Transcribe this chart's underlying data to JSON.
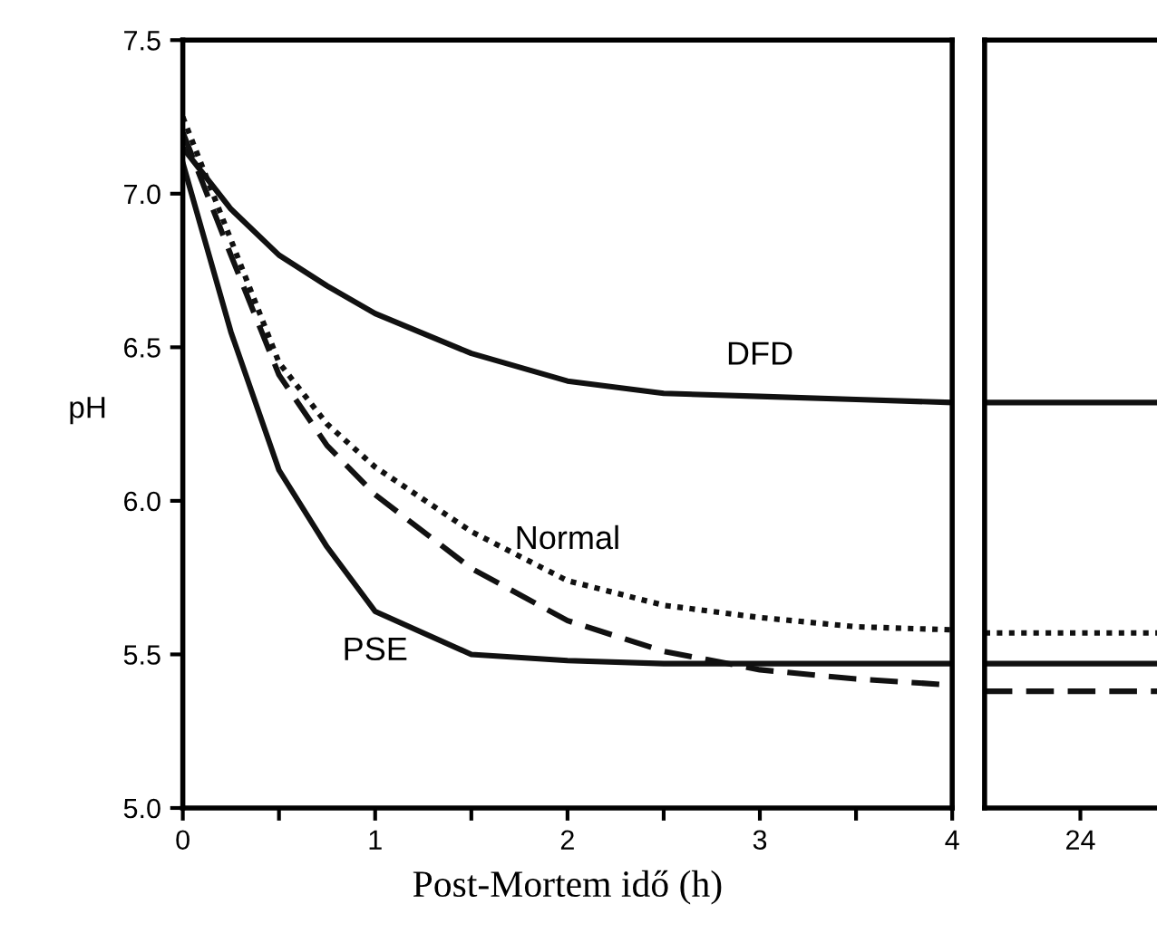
{
  "chart_data": [
    {
      "type": "line",
      "xlabel": "Post-Mortem idő (h)",
      "ylabel": "pH",
      "xlim": [
        0,
        4
      ],
      "ylim": [
        5.0,
        7.5
      ],
      "xticks": [
        0,
        {
          "value": 0.5,
          "label": null
        },
        1,
        {
          "value": 1.5,
          "label": null
        },
        2,
        {
          "value": 2.5,
          "label": null
        },
        3,
        {
          "value": 3.5,
          "label": null
        },
        4
      ],
      "yticks": [
        {
          "value": 5.0,
          "label": "5.0"
        },
        5.5,
        {
          "value": 6.0,
          "label": "6.0"
        },
        6.5,
        {
          "value": 7.0,
          "label": "7.0"
        },
        7.5
      ],
      "x": [
        0,
        0.25,
        0.5,
        0.75,
        1,
        1.5,
        2,
        2.5,
        3,
        3.5,
        4
      ],
      "series": [
        {
          "name": "DFD",
          "color": "#111111",
          "line_style": "solid",
          "values": [
            7.15,
            6.95,
            6.8,
            6.7,
            6.61,
            6.48,
            6.39,
            6.35,
            6.34,
            6.33,
            6.32
          ]
        },
        {
          "name": "Normal",
          "color": "#111111",
          "line_style": "dotted",
          "values": [
            7.25,
            6.85,
            6.45,
            6.25,
            6.11,
            5.9,
            5.74,
            5.66,
            5.62,
            5.59,
            5.58
          ]
        },
        {
          "color": "#111111",
          "line_style": "dashed",
          "values": [
            7.2,
            6.8,
            6.41,
            6.18,
            6.02,
            5.78,
            5.61,
            5.51,
            5.45,
            5.42,
            5.4
          ]
        },
        {
          "name": "PSE",
          "color": "#111111",
          "line_style": "solid",
          "values": [
            7.1,
            6.55,
            6.1,
            5.85,
            5.64,
            5.5,
            5.48,
            5.47,
            5.47,
            5.47,
            5.47
          ]
        }
      ],
      "grid": false,
      "legend": false
    },
    {
      "type": "line",
      "categories": [
        "24"
      ],
      "ylim": [
        5.0,
        7.5
      ],
      "tick_labels": "x",
      "ref_lines": [
        {
          "axis": "y",
          "value": 6.32,
          "color": "#111111",
          "line_style": "solid"
        },
        {
          "axis": "y",
          "value": 5.57,
          "color": "#111111",
          "line_style": "dotted"
        },
        {
          "axis": "y",
          "value": 5.38,
          "color": "#111111",
          "line_style": "dashed"
        },
        {
          "axis": "y",
          "value": 5.47,
          "color": "#111111",
          "line_style": "solid"
        }
      ],
      "grid": false,
      "legend": false
    }
  ]
}
